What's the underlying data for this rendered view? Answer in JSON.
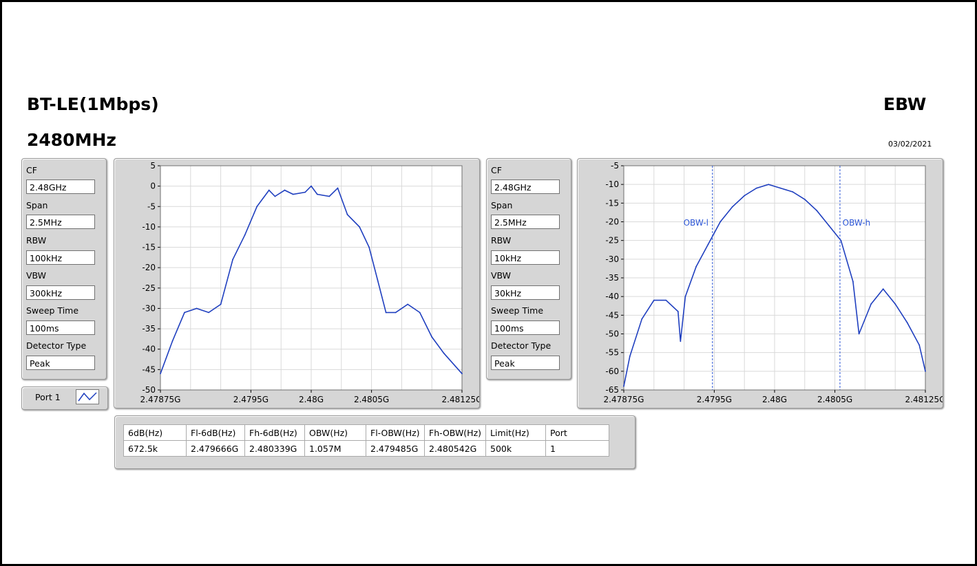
{
  "header": {
    "title_line1": "BT-LE(1Mbps)",
    "title_line2": "2480MHz",
    "right_title": "EBW",
    "date": "03/02/2021"
  },
  "left_settings": {
    "cf_label": "CF",
    "cf": "2.48GHz",
    "span_label": "Span",
    "span": "2.5MHz",
    "rbw_label": "RBW",
    "rbw": "100kHz",
    "vbw_label": "VBW",
    "vbw": "300kHz",
    "sweep_label": "Sweep Time",
    "sweep": "100ms",
    "detector_label": "Detector Type",
    "detector": "Peak"
  },
  "right_settings": {
    "cf_label": "CF",
    "cf": "2.48GHz",
    "span_label": "Span",
    "span": "2.5MHz",
    "rbw_label": "RBW",
    "rbw": "10kHz",
    "vbw_label": "VBW",
    "vbw": "30kHz",
    "sweep_label": "Sweep Time",
    "sweep": "100ms",
    "detector_label": "Detector Type",
    "detector": "Peak"
  },
  "port": {
    "label": "Port 1",
    "icon": "waveform-icon"
  },
  "colors": {
    "trace": "#1f3fbf",
    "marker": "#2b55d6",
    "panel": "#d6d6d6",
    "grid": "#d9d9d9"
  },
  "chart_data": [
    {
      "type": "line",
      "name": "left-spectrum",
      "x_ticks": [
        "2.47875G",
        "2.4795G",
        "2.48G",
        "2.4805G",
        "2.48125G"
      ],
      "x_tick_values": [
        2478.75,
        2479.5,
        2480.0,
        2480.5,
        2481.25
      ],
      "xlim": [
        2478.75,
        2481.25
      ],
      "ylim": [
        -50,
        5
      ],
      "y_ticks": [
        5,
        0,
        -5,
        -10,
        -15,
        -20,
        -25,
        -30,
        -35,
        -40,
        -45,
        -50
      ],
      "grid": true,
      "x": [
        2478.75,
        2478.85,
        2478.95,
        2479.05,
        2479.15,
        2479.25,
        2479.35,
        2479.45,
        2479.55,
        2479.65,
        2479.7,
        2479.78,
        2479.85,
        2479.95,
        2480.0,
        2480.05,
        2480.15,
        2480.22,
        2480.3,
        2480.4,
        2480.48,
        2480.55,
        2480.62,
        2480.7,
        2480.8,
        2480.9,
        2481.0,
        2481.1,
        2481.25
      ],
      "y": [
        -46,
        -38,
        -31,
        -30,
        -31,
        -29,
        -18,
        -12,
        -5,
        -1,
        -2.5,
        -1,
        -2,
        -1.5,
        0,
        -2,
        -2.5,
        -0.5,
        -7,
        -10,
        -15,
        -23,
        -31,
        -31,
        -29,
        -31,
        -37,
        -41,
        -46
      ]
    },
    {
      "type": "line",
      "name": "right-spectrum",
      "x_ticks": [
        "2.47875G",
        "2.4795G",
        "2.48G",
        "2.4805G",
        "2.48125G"
      ],
      "x_tick_values": [
        2478.75,
        2479.5,
        2480.0,
        2480.5,
        2481.25
      ],
      "xlim": [
        2478.75,
        2481.25
      ],
      "ylim": [
        -65,
        -5
      ],
      "y_ticks": [
        -5,
        -10,
        -15,
        -20,
        -25,
        -30,
        -35,
        -40,
        -45,
        -50,
        -55,
        -60,
        -65
      ],
      "grid": true,
      "x": [
        2478.75,
        2478.8,
        2478.9,
        2479.0,
        2479.1,
        2479.2,
        2479.22,
        2479.26,
        2479.35,
        2479.45,
        2479.55,
        2479.65,
        2479.75,
        2479.85,
        2479.95,
        2480.05,
        2480.15,
        2480.25,
        2480.35,
        2480.45,
        2480.55,
        2480.65,
        2480.7,
        2480.8,
        2480.9,
        2481.0,
        2481.1,
        2481.2,
        2481.25
      ],
      "y": [
        -64,
        -56,
        -46,
        -41,
        -41,
        -44,
        -52,
        -40,
        -32,
        -26,
        -20,
        -16,
        -13,
        -11,
        -10,
        -11,
        -12,
        -14,
        -17,
        -21,
        -25,
        -36,
        -50,
        -42,
        -38,
        -42,
        -47,
        -53,
        -60
      ],
      "markers": [
        {
          "label": "OBW-l",
          "x": 2479.485
        },
        {
          "label": "OBW-h",
          "x": 2480.542
        }
      ]
    }
  ],
  "results_table": {
    "headers": [
      "6dB(Hz)",
      "Fl-6dB(Hz)",
      "Fh-6dB(Hz)",
      "OBW(Hz)",
      "Fl-OBW(Hz)",
      "Fh-OBW(Hz)",
      "Limit(Hz)",
      "Port"
    ],
    "row": [
      "672.5k",
      "2.479666G",
      "2.480339G",
      "1.057M",
      "2.479485G",
      "2.480542G",
      "500k",
      "1"
    ]
  }
}
